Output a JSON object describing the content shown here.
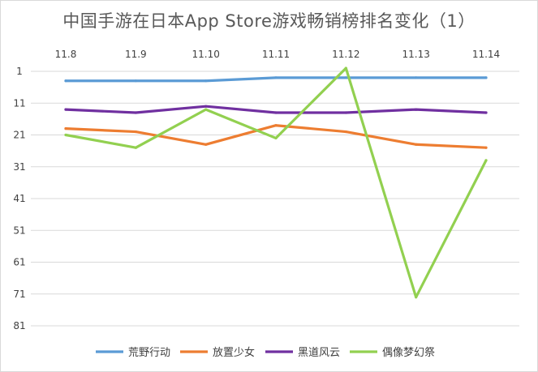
{
  "chart_data": {
    "type": "line",
    "title": "中国手游在日本App Store游戏畅销榜排名变化（1）",
    "categories": [
      "11.8",
      "11.9",
      "11.10",
      "11.11",
      "11.12",
      "11.13",
      "11.14"
    ],
    "y_ticks": [
      "1",
      "11",
      "21",
      "31",
      "41",
      "51",
      "61",
      "71",
      "81"
    ],
    "ylim": [
      1,
      81
    ],
    "y_inverted": true,
    "x_axis_position": "top",
    "grid": true,
    "legend_position": "bottom",
    "series": [
      {
        "name": "荒野行动",
        "color": "#5b9bd5",
        "values": [
          4,
          4,
          4,
          3,
          3,
          3,
          3
        ]
      },
      {
        "name": "放置少女",
        "color": "#ed7d31",
        "values": [
          19,
          20,
          24,
          18,
          20,
          24,
          25
        ]
      },
      {
        "name": "黑道风云",
        "color": "#7030a0",
        "values": [
          13,
          14,
          12,
          14,
          14,
          13,
          14
        ]
      },
      {
        "name": "偶像梦幻祭",
        "color": "#92d050",
        "values": [
          21,
          25,
          13,
          22,
          0,
          72,
          29
        ]
      }
    ]
  }
}
